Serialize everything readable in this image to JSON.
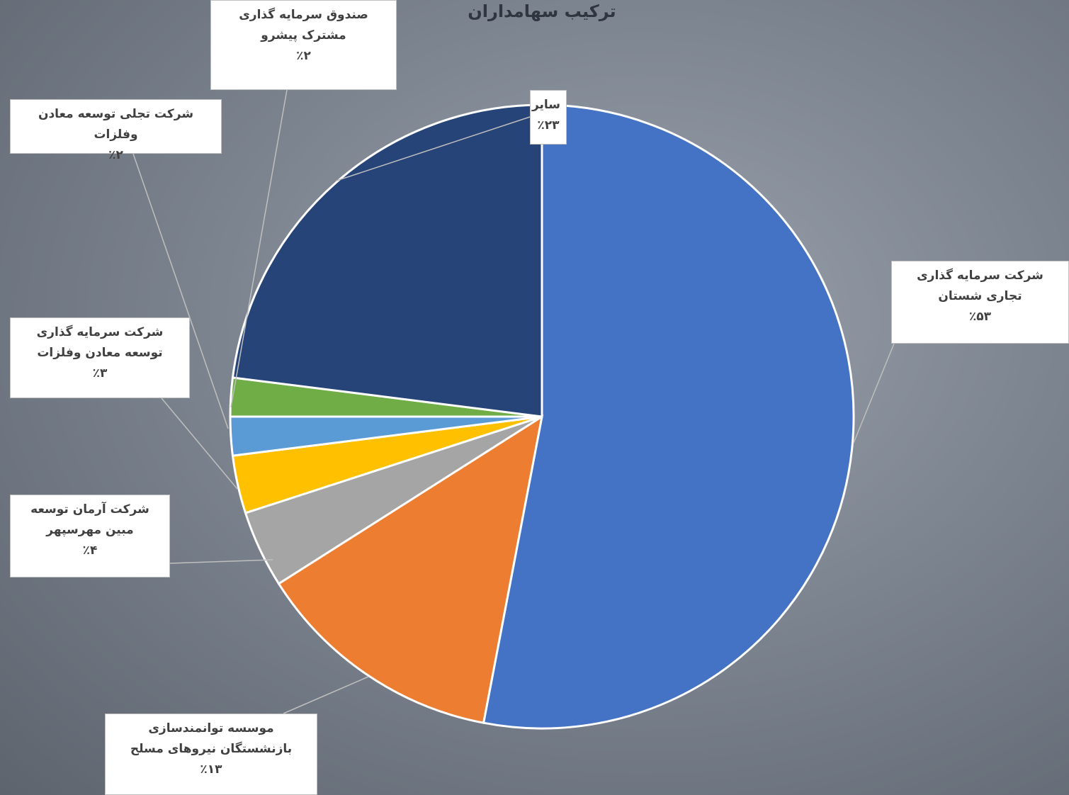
{
  "chart_data": {
    "type": "pie",
    "title": "ترکیب سهامداران",
    "categories": [
      "شرکت سرمایه گذاری تجاری شستان",
      "موسسه توانمندسازی بازنشستگان نیروهای مسلح",
      "شرکت آرمان توسعه مبین مهرسپهر",
      "شرکت سرمایه گذاری توسعه معادن وفلزات",
      "شرکت تجلی توسعه معادن وفلزات",
      "صندوق سرمایه گذاری مشترک پیشرو",
      "سایر"
    ],
    "values": [
      53,
      13,
      4,
      3,
      2,
      2,
      23
    ],
    "value_labels": [
      "٪۵۳",
      "٪۱۳",
      "٪۴",
      "٪۳",
      "٪۲",
      "٪۲",
      "٪۲۳"
    ],
    "colors": [
      "#4472c4",
      "#ed7d31",
      "#a5a5a5",
      "#ffc000",
      "#5b9bd5",
      "#70ad47",
      "#264478"
    ]
  }
}
